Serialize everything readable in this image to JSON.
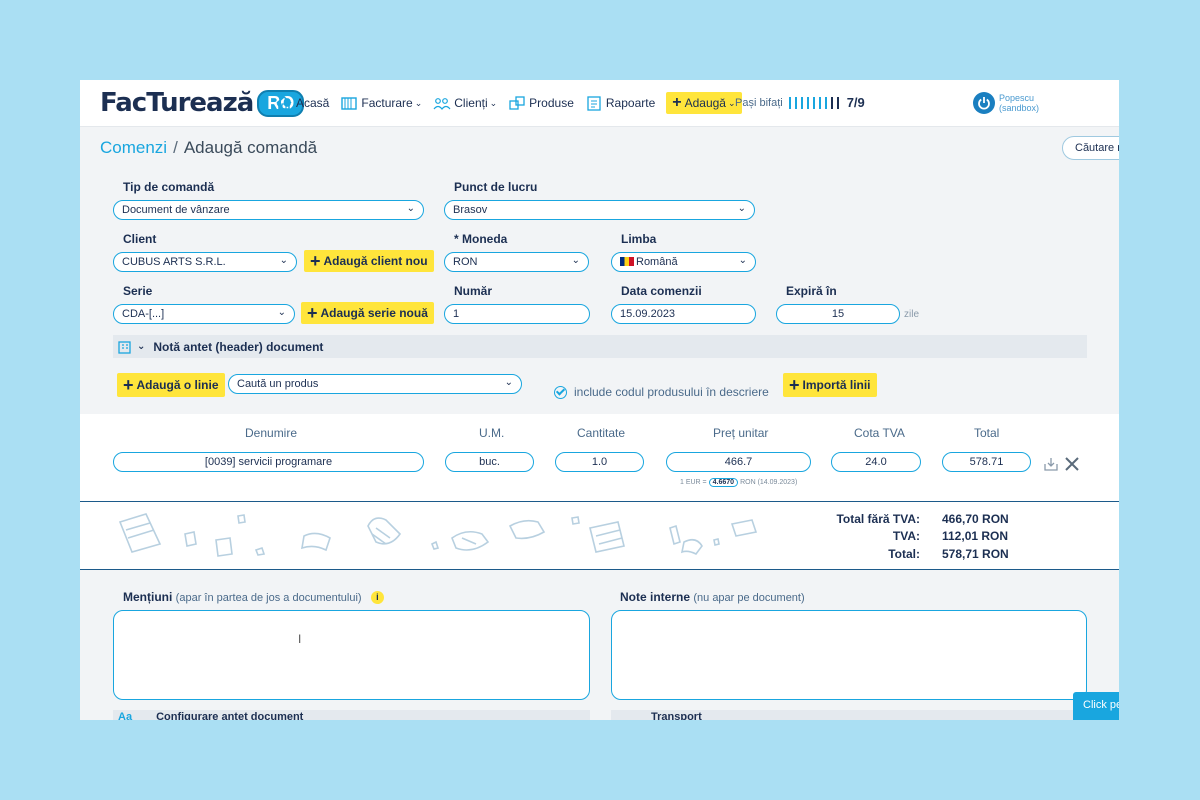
{
  "nav": {
    "logo_text": "FacTurează",
    "logo_suffix": "RO",
    "items": [
      {
        "label": "Acasă",
        "icon": "home-icon",
        "dropdown": false
      },
      {
        "label": "Facturare",
        "icon": "invoice-icon",
        "dropdown": true
      },
      {
        "label": "Clienți",
        "icon": "clients-icon",
        "dropdown": true
      },
      {
        "label": "Produse",
        "icon": "products-icon",
        "dropdown": false
      },
      {
        "label": "Rapoarte",
        "icon": "reports-icon",
        "dropdown": false
      }
    ],
    "add_label": "Adaugă",
    "steps_label": "Pași bifați",
    "steps_count": "7/9",
    "steps_done": 7,
    "steps_total": 9,
    "user_name": "Popescu",
    "user_env": "(sandbox)"
  },
  "breadcrumb": {
    "parent": "Comenzi",
    "separator": "/",
    "current": "Adaugă comandă",
    "search_label": "Căutare r"
  },
  "form": {
    "tip_label": "Tip de comandă",
    "tip_value": "Document de vânzare",
    "punct_label": "Punct de lucru",
    "punct_value": "Brasov",
    "client_label": "Client",
    "client_value": "CUBUS ARTS S.R.L.",
    "add_client_label": "Adaugă client nou",
    "moneda_label": "* Moneda",
    "moneda_value": "RON",
    "limba_label": "Limba",
    "limba_value": "Română",
    "serie_label": "Serie",
    "serie_value": "CDA-[...]",
    "add_serie_label": "Adaugă serie nouă",
    "numar_label": "Număr",
    "numar_value": "1",
    "data_label": "Data comenzii",
    "data_value": "15.09.2023",
    "expira_label": "Expiră în",
    "expira_value": "15",
    "zile_label": "zile",
    "nota_label": "Notă antet (header) document",
    "add_line_label": "Adaugă o linie",
    "product_placeholder": "Caută un produs",
    "include_label": "include codul produsului în descriere",
    "import_label": "Importă linii"
  },
  "table": {
    "headers": {
      "denumire": "Denumire",
      "um": "U.M.",
      "cantitate": "Cantitate",
      "pret": "Preț unitar",
      "cota": "Cota TVA",
      "total": "Total"
    },
    "row": {
      "denumire": "[0039] servicii programare",
      "um": "buc.",
      "cantitate": "1.0",
      "pret": "466.7",
      "cota": "24.0",
      "total": "578.71"
    },
    "rate_prefix": "1 EUR =",
    "rate_value": "4.6670",
    "rate_suffix": "RON (14.09.2023)"
  },
  "totals": {
    "fara_label": "Total fără TVA:",
    "fara_value": "466,70 RON",
    "tva_label": "TVA:",
    "tva_value": "112,01 RON",
    "total_label": "Total:",
    "total_value": "578,71 RON"
  },
  "notes": {
    "mentiuni_label": "Mențiuni",
    "mentiuni_hint": "(apar în partea de jos a documentului)",
    "interne_label": "Note interne",
    "interne_hint": "(nu apar pe document)",
    "sub_left_icon": "Aa",
    "sub_left": "Configurare antet document",
    "sub_right": "Transport",
    "click_label": "Click pe"
  },
  "colors": {
    "accent": "#19a6df",
    "yellow": "#ffe53b",
    "navy": "#1c2f52",
    "page_bg": "#aadff3"
  }
}
